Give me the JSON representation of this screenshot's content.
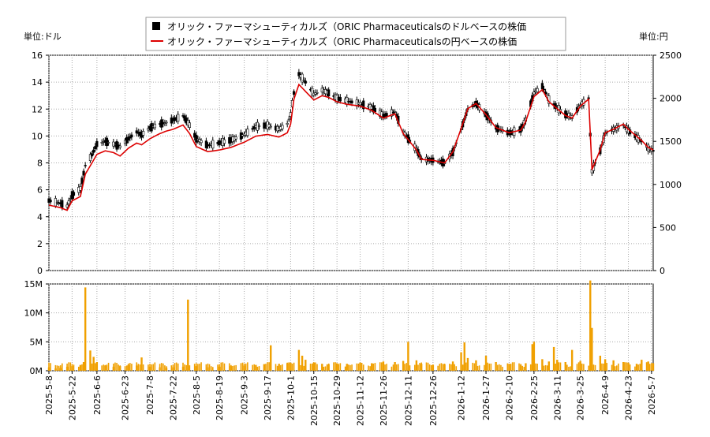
{
  "chart_data": {
    "type": "candlestick",
    "legend": [
      {
        "label": "オリック・ファーマシューティカルズ（ORIC Pharmaceuticalsのドルベースの株価",
        "style": "candle",
        "color": "#000000"
      },
      {
        "label": "オリック・ファーマシューティカルズ（ORIC Pharmaceuticalsの円ベースの株価",
        "style": "line",
        "color": "#dd0000"
      }
    ],
    "left_unit": "単位:ドル",
    "right_unit": "単位:円",
    "price_axis_left": {
      "min": 0,
      "max": 16,
      "ticks": [
        0,
        2,
        4,
        6,
        8,
        10,
        12,
        14,
        16
      ]
    },
    "price_axis_right": {
      "min": 0,
      "max": 2500,
      "ticks": [
        0,
        500,
        1000,
        1500,
        2000,
        2500
      ]
    },
    "volume_axis": {
      "min": 0,
      "max": 15000000,
      "ticks": [
        {
          "v": 0,
          "label": "0M"
        },
        {
          "v": 5000000,
          "label": "5M"
        },
        {
          "v": 10000000,
          "label": "10M"
        },
        {
          "v": 15000000,
          "label": "15M"
        }
      ]
    },
    "x_range": {
      "start": "2025-05-08",
      "end": "2026-05-08"
    },
    "x_ticks": [
      "2025-5-8",
      "2025-5-22",
      "2025-6-6",
      "2025-6-23",
      "2025-7-8",
      "2025-7-22",
      "2025-8-5",
      "2025-8-19",
      "2025-9-3",
      "2025-9-17",
      "2025-10-1",
      "2025-10-15",
      "2025-10-29",
      "2025-11-12",
      "2025-11-26",
      "2025-12-11",
      "2025-12-26",
      "2026-1-12",
      "2026-1-27",
      "2026-2-10",
      "2026-2-25",
      "2026-3-11",
      "2026-3-25",
      "2026-4-9",
      "2026-4-23",
      "2026-5-7"
    ],
    "usd_price": [
      [
        "2025-05-08",
        5.2
      ],
      [
        "2025-05-15",
        5.0
      ],
      [
        "2025-05-19",
        4.8
      ],
      [
        "2025-05-22",
        5.6
      ],
      [
        "2025-05-27",
        6.1
      ],
      [
        "2025-05-30",
        7.8
      ],
      [
        "2025-06-03",
        8.6
      ],
      [
        "2025-06-06",
        9.4
      ],
      [
        "2025-06-11",
        9.6
      ],
      [
        "2025-06-16",
        9.4
      ],
      [
        "2025-06-20",
        9.2
      ],
      [
        "2025-06-25",
        9.8
      ],
      [
        "2025-06-30",
        10.3
      ],
      [
        "2025-07-03",
        10.1
      ],
      [
        "2025-07-08",
        10.6
      ],
      [
        "2025-07-14",
        10.9
      ],
      [
        "2025-07-18",
        11.0
      ],
      [
        "2025-07-22",
        11.2
      ],
      [
        "2025-07-28",
        11.5
      ],
      [
        "2025-08-01",
        10.8
      ],
      [
        "2025-08-05",
        9.8
      ],
      [
        "2025-08-12",
        9.3
      ],
      [
        "2025-08-19",
        9.5
      ],
      [
        "2025-08-26",
        9.7
      ],
      [
        "2025-09-03",
        10.1
      ],
      [
        "2025-09-10",
        10.7
      ],
      [
        "2025-09-17",
        10.8
      ],
      [
        "2025-09-24",
        10.5
      ],
      [
        "2025-09-29",
        10.9
      ],
      [
        "2025-10-01",
        11.6
      ],
      [
        "2025-10-03",
        13.2
      ],
      [
        "2025-10-06",
        14.6
      ],
      [
        "2025-10-10",
        14.0
      ],
      [
        "2025-10-15",
        13.1
      ],
      [
        "2025-10-20",
        13.4
      ],
      [
        "2025-10-24",
        13.2
      ],
      [
        "2025-10-29",
        12.8
      ],
      [
        "2025-11-04",
        12.6
      ],
      [
        "2025-11-12",
        12.4
      ],
      [
        "2025-11-19",
        12.1
      ],
      [
        "2025-11-26",
        11.5
      ],
      [
        "2025-12-03",
        11.8
      ],
      [
        "2025-12-08",
        10.3
      ],
      [
        "2025-12-11",
        9.8
      ],
      [
        "2025-12-16",
        9.0
      ],
      [
        "2025-12-19",
        8.3
      ],
      [
        "2025-12-26",
        8.2
      ],
      [
        "2026-01-02",
        8.0
      ],
      [
        "2026-01-07",
        8.8
      ],
      [
        "2026-01-12",
        10.5
      ],
      [
        "2026-01-16",
        12.0
      ],
      [
        "2026-01-21",
        12.4
      ],
      [
        "2026-01-27",
        11.6
      ],
      [
        "2026-02-02",
        10.6
      ],
      [
        "2026-02-10",
        10.2
      ],
      [
        "2026-02-17",
        10.5
      ],
      [
        "2026-02-20",
        11.2
      ],
      [
        "2026-02-25",
        13.2
      ],
      [
        "2026-03-02",
        13.7
      ],
      [
        "2026-03-06",
        12.7
      ],
      [
        "2026-03-11",
        12.1
      ],
      [
        "2026-03-16",
        11.6
      ],
      [
        "2026-03-20",
        11.4
      ],
      [
        "2026-03-25",
        12.3
      ],
      [
        "2026-03-30",
        12.8
      ],
      [
        "2026-04-01",
        7.4
      ],
      [
        "2026-04-06",
        8.9
      ],
      [
        "2026-04-09",
        10.2
      ],
      [
        "2026-04-14",
        10.5
      ],
      [
        "2026-04-20",
        10.8
      ],
      [
        "2026-04-23",
        10.4
      ],
      [
        "2026-04-28",
        9.9
      ],
      [
        "2026-05-01",
        9.6
      ],
      [
        "2026-05-05",
        9.1
      ],
      [
        "2026-05-08",
        8.9
      ]
    ],
    "jpy_price": [
      [
        "2025-05-08",
        760
      ],
      [
        "2025-05-15",
        730
      ],
      [
        "2025-05-19",
        700
      ],
      [
        "2025-05-22",
        810
      ],
      [
        "2025-05-27",
        860
      ],
      [
        "2025-05-30",
        1120
      ],
      [
        "2025-06-03",
        1250
      ],
      [
        "2025-06-06",
        1350
      ],
      [
        "2025-06-11",
        1390
      ],
      [
        "2025-06-16",
        1370
      ],
      [
        "2025-06-20",
        1330
      ],
      [
        "2025-06-25",
        1420
      ],
      [
        "2025-06-30",
        1480
      ],
      [
        "2025-07-03",
        1460
      ],
      [
        "2025-07-08",
        1530
      ],
      [
        "2025-07-14",
        1590
      ],
      [
        "2025-07-18",
        1620
      ],
      [
        "2025-07-22",
        1640
      ],
      [
        "2025-07-28",
        1690
      ],
      [
        "2025-08-01",
        1590
      ],
      [
        "2025-08-05",
        1440
      ],
      [
        "2025-08-12",
        1380
      ],
      [
        "2025-08-19",
        1400
      ],
      [
        "2025-08-26",
        1430
      ],
      [
        "2025-09-03",
        1490
      ],
      [
        "2025-09-10",
        1560
      ],
      [
        "2025-09-17",
        1580
      ],
      [
        "2025-09-24",
        1550
      ],
      [
        "2025-09-29",
        1600
      ],
      [
        "2025-10-01",
        1700
      ],
      [
        "2025-10-03",
        1990
      ],
      [
        "2025-10-06",
        2160
      ],
      [
        "2025-10-10",
        2080
      ],
      [
        "2025-10-15",
        1980
      ],
      [
        "2025-10-20",
        2030
      ],
      [
        "2025-10-24",
        2010
      ],
      [
        "2025-10-29",
        1960
      ],
      [
        "2025-11-04",
        1930
      ],
      [
        "2025-11-12",
        1910
      ],
      [
        "2025-11-19",
        1860
      ],
      [
        "2025-11-26",
        1770
      ],
      [
        "2025-12-03",
        1820
      ],
      [
        "2025-12-08",
        1590
      ],
      [
        "2025-12-11",
        1520
      ],
      [
        "2025-12-16",
        1400
      ],
      [
        "2025-12-19",
        1290
      ],
      [
        "2025-12-26",
        1280
      ],
      [
        "2026-01-02",
        1250
      ],
      [
        "2026-01-07",
        1380
      ],
      [
        "2026-01-12",
        1650
      ],
      [
        "2026-01-16",
        1880
      ],
      [
        "2026-01-21",
        1940
      ],
      [
        "2026-01-27",
        1810
      ],
      [
        "2026-02-02",
        1660
      ],
      [
        "2026-02-10",
        1600
      ],
      [
        "2026-02-17",
        1630
      ],
      [
        "2026-02-20",
        1730
      ],
      [
        "2026-02-25",
        2020
      ],
      [
        "2026-03-02",
        2100
      ],
      [
        "2026-03-06",
        1960
      ],
      [
        "2026-03-11",
        1880
      ],
      [
        "2026-03-16",
        1800
      ],
      [
        "2026-03-20",
        1770
      ],
      [
        "2026-03-25",
        1910
      ],
      [
        "2026-03-30",
        1990
      ],
      [
        "2026-04-01",
        1170
      ],
      [
        "2026-04-06",
        1400
      ],
      [
        "2026-04-09",
        1600
      ],
      [
        "2026-04-14",
        1640
      ],
      [
        "2026-04-20",
        1700
      ],
      [
        "2026-04-23",
        1640
      ],
      [
        "2026-04-28",
        1560
      ],
      [
        "2026-05-01",
        1510
      ],
      [
        "2026-05-05",
        1430
      ],
      [
        "2026-05-08",
        1400
      ]
    ],
    "volume": [
      [
        "2025-05-08",
        0.6
      ],
      [
        "2025-05-12",
        0.4
      ],
      [
        "2025-05-15",
        0.5
      ],
      [
        "2025-05-19",
        0.7
      ],
      [
        "2025-05-22",
        0.8
      ],
      [
        "2025-05-27",
        1.0
      ],
      [
        "2025-05-29",
        1.5
      ],
      [
        "2025-05-30",
        14.4
      ],
      [
        "2025-06-02",
        3.5
      ],
      [
        "2025-06-04",
        2.4
      ],
      [
        "2025-06-06",
        1.5
      ],
      [
        "2025-06-11",
        0.9
      ],
      [
        "2025-06-16",
        0.7
      ],
      [
        "2025-06-20",
        0.8
      ],
      [
        "2025-06-25",
        1.0
      ],
      [
        "2025-06-30",
        0.9
      ],
      [
        "2025-07-03",
        2.3
      ],
      [
        "2025-07-08",
        0.7
      ],
      [
        "2025-07-14",
        0.6
      ],
      [
        "2025-07-18",
        0.5
      ],
      [
        "2025-07-22",
        0.6
      ],
      [
        "2025-07-28",
        0.7
      ],
      [
        "2025-07-31",
        12.3
      ],
      [
        "2025-08-05",
        0.8
      ],
      [
        "2025-08-12",
        0.6
      ],
      [
        "2025-08-19",
        0.7
      ],
      [
        "2025-08-26",
        0.8
      ],
      [
        "2025-09-03",
        0.9
      ],
      [
        "2025-09-10",
        1.0
      ],
      [
        "2025-09-15",
        1.1
      ],
      [
        "2025-09-19",
        4.4
      ],
      [
        "2025-09-24",
        1.2
      ],
      [
        "2025-09-29",
        1.3
      ],
      [
        "2025-10-01",
        1.4
      ],
      [
        "2025-10-06",
        3.6
      ],
      [
        "2025-10-08",
        2.6
      ],
      [
        "2025-10-10",
        1.9
      ],
      [
        "2025-10-15",
        1.4
      ],
      [
        "2025-10-20",
        1.2
      ],
      [
        "2025-10-24",
        1.1
      ],
      [
        "2025-10-29",
        1.3
      ],
      [
        "2025-11-04",
        1.2
      ],
      [
        "2025-11-12",
        1.4
      ],
      [
        "2025-11-19",
        1.3
      ],
      [
        "2025-11-26",
        1.6
      ],
      [
        "2025-12-03",
        1.5
      ],
      [
        "2025-12-08",
        1.7
      ],
      [
        "2025-12-11",
        5.0
      ],
      [
        "2025-12-16",
        1.8
      ],
      [
        "2025-12-19",
        1.2
      ],
      [
        "2025-12-26",
        1.0
      ],
      [
        "2026-01-02",
        1.1
      ],
      [
        "2026-01-07",
        1.6
      ],
      [
        "2026-01-12",
        3.2
      ],
      [
        "2026-01-14",
        4.9
      ],
      [
        "2026-01-16",
        2.2
      ],
      [
        "2026-01-21",
        1.8
      ],
      [
        "2026-01-27",
        2.6
      ],
      [
        "2026-02-02",
        1.5
      ],
      [
        "2026-02-10",
        1.2
      ],
      [
        "2026-02-17",
        1.0
      ],
      [
        "2026-02-20",
        1.3
      ],
      [
        "2026-02-24",
        4.6
      ],
      [
        "2026-02-25",
        5.0
      ],
      [
        "2026-03-02",
        2.0
      ],
      [
        "2026-03-06",
        1.6
      ],
      [
        "2026-03-09",
        4.1
      ],
      [
        "2026-03-11",
        1.9
      ],
      [
        "2026-03-16",
        1.5
      ],
      [
        "2026-03-20",
        3.6
      ],
      [
        "2026-03-25",
        1.7
      ],
      [
        "2026-03-31",
        15.6
      ],
      [
        "2026-04-01",
        7.4
      ],
      [
        "2026-04-06",
        2.6
      ],
      [
        "2026-04-09",
        2.0
      ],
      [
        "2026-04-14",
        1.8
      ],
      [
        "2026-04-20",
        1.5
      ],
      [
        "2026-04-23",
        1.4
      ],
      [
        "2026-04-28",
        1.2
      ],
      [
        "2026-05-01",
        1.9
      ],
      [
        "2026-05-05",
        1.6
      ],
      [
        "2026-05-08",
        1.3
      ]
    ]
  }
}
